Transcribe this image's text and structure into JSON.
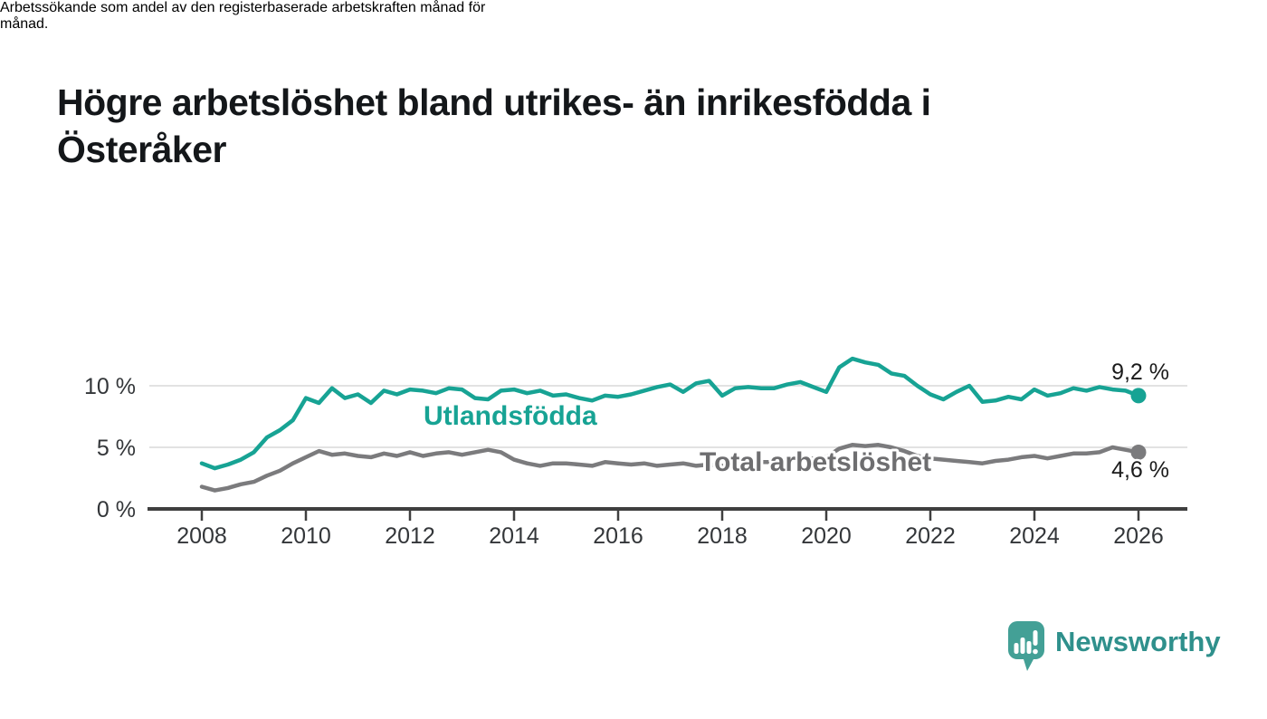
{
  "header": {
    "title_lines": [
      "Högre arbetslöshet bland utrikes- än inrikesfödda i",
      "Österåker"
    ],
    "subtitle_lines": [
      "Arbetssökande som andel av den registerbaserade arbetskraften månad för",
      "månad."
    ]
  },
  "footer": {
    "brand": "Newsworthy",
    "logo_icon": "newsworthy-speech-bubble-bar-chart-icon"
  },
  "colors": {
    "accent_teal": "#17a394",
    "series_gray": "#7b7b7d",
    "series_label_gray": "#6e6e70",
    "axis": "#3f3f3f",
    "grid": "#d9d9d9",
    "tick_text": "#333639",
    "value_text": "#1b1b1b",
    "logo_bubble_teal": "#43a096",
    "logo_text_teal": "#2f908c"
  },
  "chart_data": {
    "type": "line",
    "title": "Högre arbetslöshet bland utrikes- än inrikesfödda i Österåker",
    "subtitle": "Arbetssökande som andel av den registerbaserade arbetskraften månad för månad.",
    "unit": "%",
    "grid": "horizontal-only",
    "legend_position": "inline-labels-on-lines",
    "x_start": 2008,
    "x_step": 0.25,
    "x_ticks": [
      2008,
      2010,
      2012,
      2014,
      2016,
      2018,
      2020,
      2022,
      2024,
      2026
    ],
    "yticks": [
      {
        "value": 0,
        "label": "0 %"
      },
      {
        "value": 5,
        "label": "5 %"
      },
      {
        "value": 10,
        "label": "10 %"
      }
    ],
    "ylim": [
      0,
      12.6
    ],
    "series": [
      {
        "name": "Utlandsfödda",
        "color": "#17a394",
        "end_label": "9,2 %",
        "end_value": 9.2,
        "values": [
          3.7,
          3.3,
          3.6,
          4.0,
          4.6,
          5.8,
          6.4,
          7.2,
          9.0,
          8.6,
          9.8,
          9.0,
          9.3,
          8.6,
          9.6,
          9.3,
          9.7,
          9.6,
          9.4,
          9.8,
          9.7,
          9.0,
          8.9,
          9.6,
          9.7,
          9.4,
          9.6,
          9.2,
          9.3,
          9.0,
          8.8,
          9.2,
          9.1,
          9.3,
          9.6,
          9.9,
          10.1,
          9.5,
          10.2,
          10.4,
          9.2,
          9.8,
          9.9,
          9.8,
          9.8,
          10.1,
          10.3,
          9.9,
          9.5,
          11.5,
          12.2,
          11.9,
          11.7,
          11.0,
          10.8,
          10.0,
          9.3,
          8.9,
          9.5,
          10.0,
          8.7,
          8.8,
          9.1,
          8.9,
          9.7,
          9.2,
          9.4,
          9.8,
          9.6,
          9.9,
          9.7,
          9.6,
          9.2
        ]
      },
      {
        "name": "Total arbetslöshet",
        "color": "#7b7b7d",
        "end_label": "4,6 %",
        "end_value": 4.6,
        "values": [
          1.8,
          1.5,
          1.7,
          2.0,
          2.2,
          2.7,
          3.1,
          3.7,
          4.2,
          4.7,
          4.4,
          4.5,
          4.3,
          4.2,
          4.5,
          4.3,
          4.6,
          4.3,
          4.5,
          4.6,
          4.4,
          4.6,
          4.8,
          4.6,
          4.0,
          3.7,
          3.5,
          3.7,
          3.7,
          3.6,
          3.5,
          3.8,
          3.7,
          3.6,
          3.7,
          3.5,
          3.6,
          3.7,
          3.5,
          3.6,
          3.5,
          3.6,
          3.7,
          3.8,
          3.8,
          3.9,
          4.0,
          4.1,
          4.2,
          4.9,
          5.2,
          5.1,
          5.2,
          5.0,
          4.7,
          4.3,
          4.1,
          4.0,
          3.9,
          3.8,
          3.7,
          3.9,
          4.0,
          4.2,
          4.3,
          4.1,
          4.3,
          4.5,
          4.5,
          4.6,
          5.0,
          4.8,
          4.6
        ]
      }
    ]
  }
}
